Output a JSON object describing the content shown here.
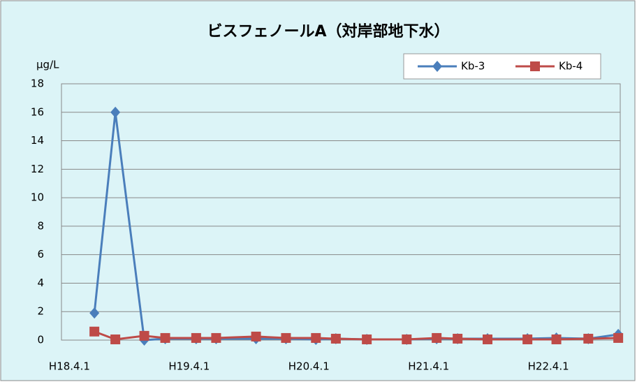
{
  "chart_data": {
    "type": "line",
    "title": "ビスフェノールA（対岸部地下水）",
    "y_label": "μg/L",
    "x": [
      2.5,
      4.6,
      7.5,
      9.6,
      12.7,
      14.7,
      18.7,
      21.7,
      24.7,
      26.7,
      29.8,
      33.8,
      36.8,
      38.9,
      41.9,
      45.9,
      48.8,
      52.0,
      55.0
    ],
    "xlim": [
      -0.8,
      55.2
    ],
    "xticks": [
      {
        "value": 0,
        "label": "H18.4.1"
      },
      {
        "value": 12,
        "label": "H19.4.1"
      },
      {
        "value": 24,
        "label": "H20.4.1"
      },
      {
        "value": 36,
        "label": "H21.4.1"
      },
      {
        "value": 48,
        "label": "H22.4.1"
      }
    ],
    "ylim": [
      0,
      18
    ],
    "yticks": [
      0,
      2,
      4,
      6,
      8,
      10,
      12,
      14,
      16,
      18
    ],
    "grid": true,
    "legend": "top-right",
    "series": [
      {
        "name": "Kb-3",
        "color": "#4a7ebb",
        "marker": "diamond",
        "values": [
          1.9,
          16,
          0,
          0.1,
          0.1,
          0.1,
          0.1,
          0.1,
          0.05,
          0.1,
          0.05,
          0.05,
          0.1,
          0.1,
          0.1,
          0.1,
          0.15,
          0.1,
          0.4
        ]
      },
      {
        "name": "Kb-4",
        "color": "#be4b48",
        "marker": "square",
        "values": [
          0.6,
          0.05,
          0.3,
          0.15,
          0.15,
          0.15,
          0.25,
          0.15,
          0.15,
          0.1,
          0.05,
          0.05,
          0.15,
          0.1,
          0.05,
          0.05,
          0.05,
          0.1,
          0.15
        ]
      }
    ]
  }
}
